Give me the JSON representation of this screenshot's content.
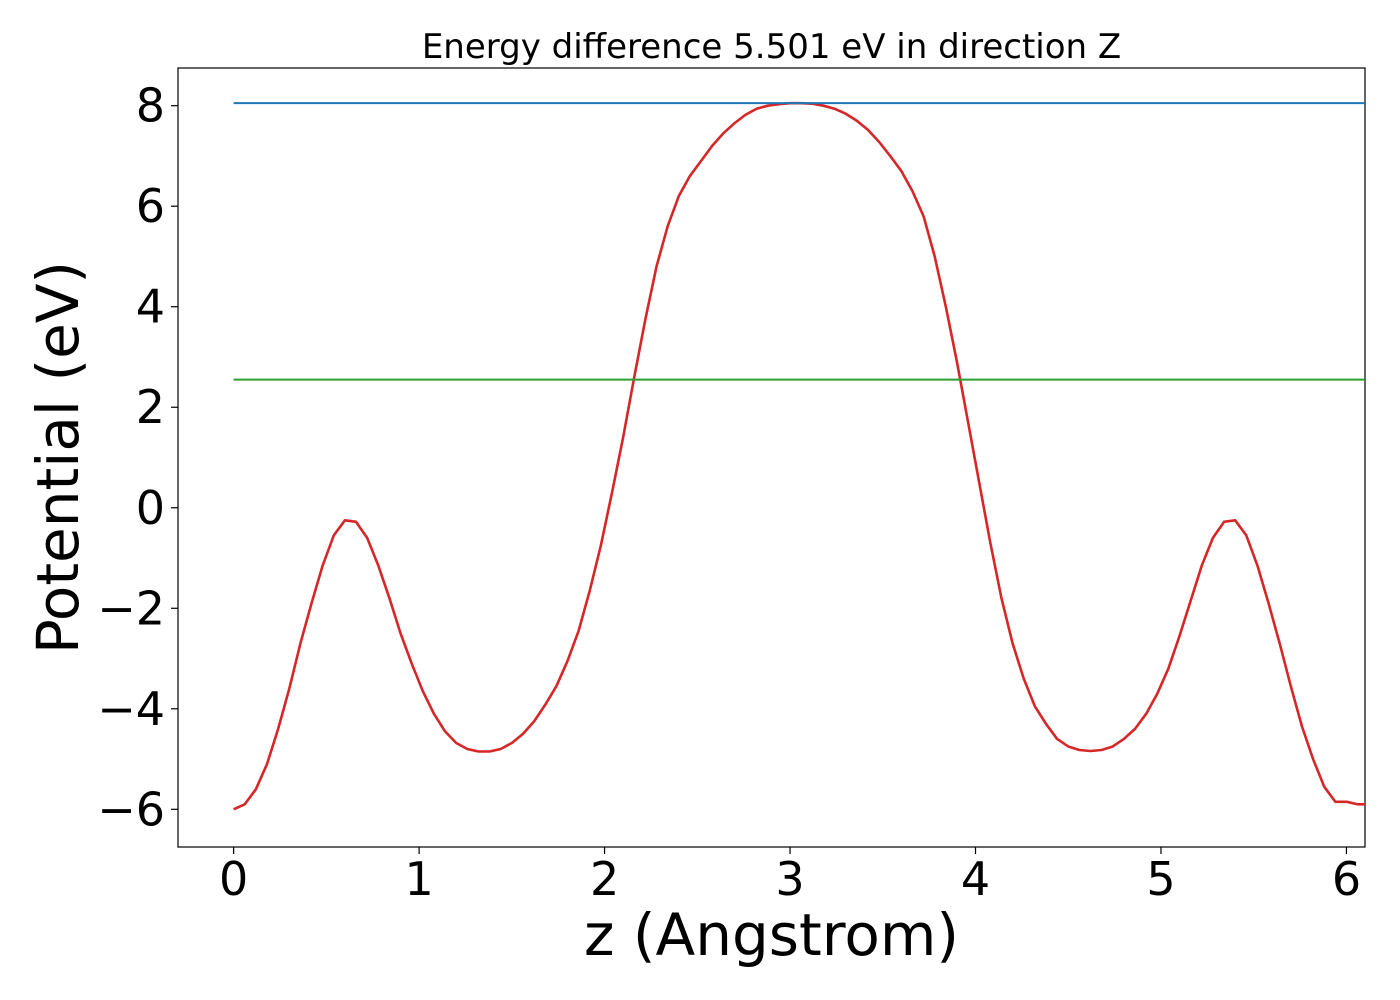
{
  "chart_data": {
    "type": "line",
    "title": "Energy difference 5.501 eV in direction Z",
    "xlabel": "z (Angstrom)",
    "ylabel": "Potential (eV)",
    "xlim": [
      -0.3,
      6.1
    ],
    "ylim": [
      -6.75,
      8.75
    ],
    "xticks": [
      0,
      1,
      2,
      3,
      4,
      5,
      6
    ],
    "yticks": [
      -6,
      -4,
      -2,
      0,
      2,
      4,
      6,
      8
    ],
    "xtick_labels": [
      "0",
      "1",
      "2",
      "3",
      "4",
      "5",
      "6"
    ],
    "ytick_labels": [
      "−6",
      "−4",
      "−2",
      "0",
      "2",
      "4",
      "6",
      "8"
    ],
    "grid": false,
    "series": [
      {
        "color": "#d62728",
        "x": [
          0.0,
          0.06,
          0.12,
          0.18,
          0.24,
          0.3,
          0.36,
          0.42,
          0.48,
          0.54,
          0.6,
          0.66,
          0.72,
          0.78,
          0.84,
          0.9,
          0.96,
          1.02,
          1.08,
          1.14,
          1.2,
          1.26,
          1.32,
          1.38,
          1.44,
          1.5,
          1.56,
          1.62,
          1.68,
          1.74,
          1.8,
          1.86,
          1.92,
          1.98,
          2.04,
          2.1,
          2.16,
          2.22,
          2.28,
          2.34,
          2.4,
          2.46,
          2.52,
          2.58,
          2.64,
          2.7,
          2.76,
          2.82,
          2.88,
          2.94,
          3.0,
          3.06,
          3.12,
          3.18,
          3.24,
          3.3,
          3.36,
          3.42,
          3.48,
          3.54,
          3.6,
          3.66,
          3.72,
          3.78,
          3.84,
          3.9,
          3.96,
          4.02,
          4.08,
          4.14,
          4.2,
          4.26,
          4.32,
          4.38,
          4.44,
          4.5,
          4.56,
          4.62,
          4.68,
          4.74,
          4.8,
          4.86,
          4.92,
          4.98,
          5.04,
          5.1,
          5.16,
          5.22,
          5.28,
          5.34,
          5.4,
          5.46,
          5.52,
          5.58,
          5.64,
          5.7,
          5.76,
          5.82,
          5.88,
          5.94,
          6.0,
          6.06,
          6.1
        ],
        "y": [
          -6.0,
          -5.9,
          -5.6,
          -5.1,
          -4.4,
          -3.6,
          -2.7,
          -1.9,
          -1.15,
          -0.55,
          -0.25,
          -0.28,
          -0.6,
          -1.15,
          -1.8,
          -2.5,
          -3.1,
          -3.65,
          -4.1,
          -4.45,
          -4.68,
          -4.8,
          -4.85,
          -4.85,
          -4.8,
          -4.68,
          -4.5,
          -4.25,
          -3.92,
          -3.55,
          -3.05,
          -2.45,
          -1.65,
          -0.75,
          0.3,
          1.4,
          2.6,
          3.75,
          4.8,
          5.6,
          6.2,
          6.6,
          6.9,
          7.2,
          7.45,
          7.65,
          7.82,
          7.94,
          8.0,
          8.03,
          8.05,
          8.05,
          8.04,
          8.0,
          7.94,
          7.84,
          7.7,
          7.52,
          7.28,
          7.0,
          6.7,
          6.3,
          5.8,
          5.0,
          4.0,
          2.9,
          1.7,
          0.5,
          -0.7,
          -1.8,
          -2.7,
          -3.4,
          -3.95,
          -4.3,
          -4.6,
          -4.75,
          -4.82,
          -4.84,
          -4.82,
          -4.75,
          -4.6,
          -4.4,
          -4.1,
          -3.7,
          -3.2,
          -2.55,
          -1.85,
          -1.15,
          -0.6,
          -0.28,
          -0.25,
          -0.55,
          -1.15,
          -1.9,
          -2.7,
          -3.55,
          -4.35,
          -5.0,
          -5.55,
          -5.85,
          -5.85,
          -5.9,
          -5.9
        ]
      },
      {
        "color": "#1f77b4",
        "x": [
          0.0,
          6.1
        ],
        "y": [
          8.05,
          8.05
        ]
      },
      {
        "color": "#2ca02c",
        "x": [
          0.0,
          6.1
        ],
        "y": [
          2.55,
          2.55
        ]
      }
    ]
  }
}
